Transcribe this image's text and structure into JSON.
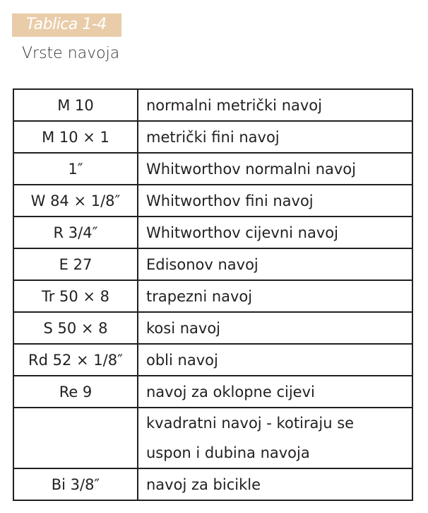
{
  "table_label": "Tablica 1-4",
  "caption": "Vrste navoja",
  "rows": [
    {
      "designation": "M 10",
      "description": "normalni metrički navoj"
    },
    {
      "designation": "M 10 × 1",
      "description": "metrički fini navoj"
    },
    {
      "designation": "1″",
      "description": "Whitworthov normalni navoj"
    },
    {
      "designation": "W 84 × 1/8″",
      "description": "Whitworthov fini navoj"
    },
    {
      "designation": "R 3/4″",
      "description": "Whitworthov cijevni navoj"
    },
    {
      "designation": "E 27",
      "description": "Edisonov navoj"
    },
    {
      "designation": "Tr 50 × 8",
      "description": "trapezni navoj"
    },
    {
      "designation": "S 50 × 8",
      "description": "kosi navoj"
    },
    {
      "designation": "Rd 52 × 1/8″",
      "description": "obli navoj"
    },
    {
      "designation": "Re 9",
      "description": "navoj za oklopne cijevi"
    },
    {
      "designation": "",
      "description": "kvadratni navoj - kotiraju se uspon i dubina navoja"
    },
    {
      "designation": "Bi 3/8″",
      "description": "navoj za bicikle"
    }
  ]
}
